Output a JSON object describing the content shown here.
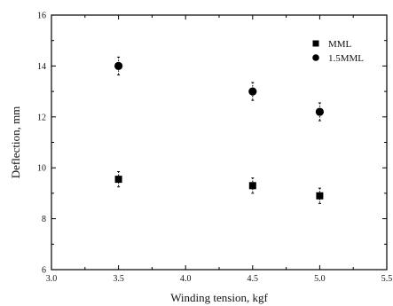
{
  "chart_data": {
    "type": "scatter",
    "title": "",
    "xlabel": "Winding tension, kgf",
    "ylabel": "Deflection, mm",
    "xlim": [
      3.0,
      5.5
    ],
    "ylim": [
      6,
      16
    ],
    "xticks": [
      "3.0",
      "3.5",
      "4.0",
      "4.5",
      "5.0",
      "5.5"
    ],
    "yticks": [
      "6",
      "8",
      "10",
      "12",
      "14",
      "16"
    ],
    "grid": false,
    "legend_position": "top-right",
    "series": [
      {
        "name": "MML",
        "marker": "square",
        "x": [
          3.5,
          4.5,
          5.0
        ],
        "y": [
          9.55,
          9.3,
          8.9
        ],
        "err": [
          0.3,
          0.3,
          0.3
        ]
      },
      {
        "name": "1.5MML",
        "marker": "circle",
        "x": [
          3.5,
          4.5,
          5.0
        ],
        "y": [
          14.0,
          13.0,
          12.2
        ],
        "err": [
          0.35,
          0.35,
          0.35
        ]
      }
    ]
  }
}
